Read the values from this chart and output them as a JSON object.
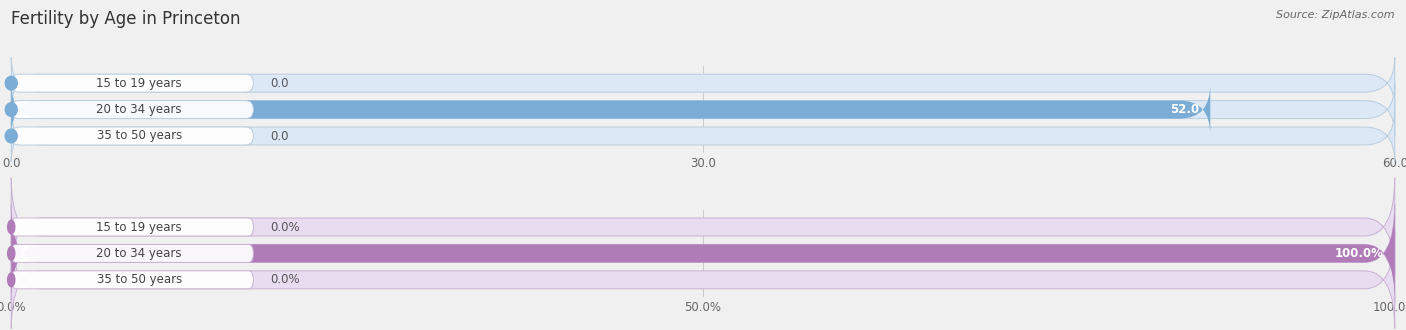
{
  "title": "Fertility by Age in Princeton",
  "source": "Source: ZipAtlas.com",
  "top_chart": {
    "categories": [
      "15 to 19 years",
      "20 to 34 years",
      "35 to 50 years"
    ],
    "values": [
      0.0,
      52.0,
      0.0
    ],
    "xlim": [
      0,
      60
    ],
    "xticks": [
      0.0,
      30.0,
      60.0
    ],
    "xtick_labels": [
      "0.0",
      "30.0",
      "60.0"
    ],
    "bar_color": "#7aacd6",
    "bar_bg_color": "#dce8f5",
    "bar_border_color": "#b8cde0",
    "label_bg_color": "#f0f4f9",
    "value_label": "52.0"
  },
  "bottom_chart": {
    "categories": [
      "15 to 19 years",
      "20 to 34 years",
      "35 to 50 years"
    ],
    "values": [
      0.0,
      100.0,
      0.0
    ],
    "xlim": [
      0,
      100
    ],
    "xticks": [
      0.0,
      50.0,
      100.0
    ],
    "xtick_labels": [
      "0.0%",
      "50.0%",
      "100.0%"
    ],
    "bar_color": "#b07cb8",
    "bar_bg_color": "#e8ddf0",
    "bar_border_color": "#c9b0d4",
    "label_bg_color": "#f2eef6",
    "value_label": "100.0%"
  },
  "bg_color": "#f0f0f0",
  "bar_height": 0.68,
  "title_fontsize": 12,
  "label_fontsize": 8.5,
  "tick_fontsize": 8.5,
  "source_fontsize": 8,
  "category_fontsize": 8.5
}
